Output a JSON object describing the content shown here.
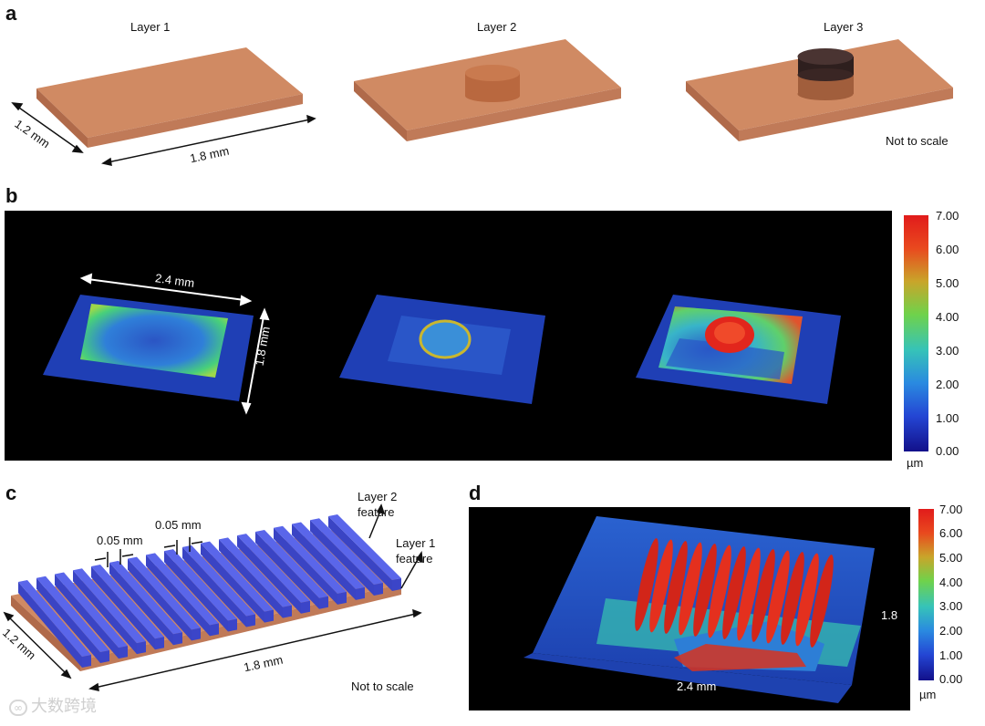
{
  "panels": {
    "a": {
      "letter": "a",
      "layer_labels": [
        "Layer 1",
        "Layer 2",
        "Layer 3"
      ],
      "dim_width": "1.2 mm",
      "dim_length": "1.8 mm",
      "note": "Not to scale"
    },
    "b": {
      "letter": "b",
      "dim_length": "2.4 mm",
      "dim_width": "1.8 mm",
      "colorbar_ticks": [
        "7.00",
        "6.00",
        "5.00",
        "4.00",
        "3.00",
        "2.00",
        "1.00",
        "0.00"
      ],
      "colorbar_unit": "µm"
    },
    "c": {
      "letter": "c",
      "gap_label_1": "0.05 mm",
      "gap_label_2": "0.05 mm",
      "layer2_label": "Layer 2\nfeature",
      "layer2_line1": "Layer 2",
      "layer2_line2": "feature",
      "layer1_line1": "Layer 1",
      "layer1_line2": "feature",
      "dim_width": "1.2 mm",
      "dim_length": "1.8 mm",
      "note": "Not to scale"
    },
    "d": {
      "letter": "d",
      "dim_x": "2.4 mm",
      "dim_y": "1.8",
      "colorbar_ticks": [
        "7.00",
        "6.00",
        "5.00",
        "4.00",
        "3.00",
        "2.00",
        "1.00",
        "0.00"
      ],
      "colorbar_unit": "µm"
    }
  },
  "watermark": "大数跨境",
  "colors": {
    "copper": "#d08a63",
    "copper_dark": "#b9714f",
    "feature_blue": "#4a55e0",
    "layer3_dark": "#3a2624",
    "panel_bg": "#000000"
  }
}
